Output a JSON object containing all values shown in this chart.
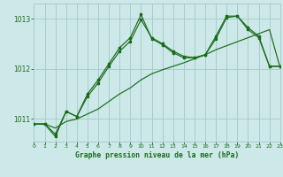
{
  "bg_color": "#cce8e8",
  "grid_color": "#aacccc",
  "line_color": "#1a6b1a",
  "title": "Graphe pression niveau de la mer (hPa)",
  "xlim": [
    0,
    23
  ],
  "ylim": [
    1010.55,
    1013.3
  ],
  "yticks": [
    1011,
    1012,
    1013
  ],
  "xticks": [
    0,
    1,
    2,
    3,
    4,
    5,
    6,
    7,
    8,
    9,
    10,
    11,
    12,
    13,
    14,
    15,
    16,
    17,
    18,
    19,
    20,
    21,
    22,
    23
  ],
  "series_trend_x": [
    0,
    1,
    2,
    3,
    4,
    5,
    6,
    7,
    8,
    9,
    10,
    11,
    12,
    13,
    14,
    15,
    16,
    17,
    18,
    19,
    20,
    21,
    22,
    23
  ],
  "series_trend_y": [
    1010.9,
    1010.9,
    1010.82,
    1010.95,
    1011.0,
    1011.1,
    1011.2,
    1011.35,
    1011.5,
    1011.62,
    1011.78,
    1011.9,
    1011.98,
    1012.05,
    1012.12,
    1012.2,
    1012.28,
    1012.38,
    1012.46,
    1012.54,
    1012.62,
    1012.7,
    1012.78,
    1012.02
  ],
  "series_a_x": [
    0,
    1,
    2,
    3,
    4,
    5,
    6,
    7,
    8,
    9,
    10,
    11,
    12,
    13,
    14,
    15,
    16,
    17,
    18,
    19,
    20,
    21,
    22,
    23
  ],
  "series_a_y": [
    1010.9,
    1010.9,
    1010.7,
    1011.15,
    1011.05,
    1011.5,
    1011.78,
    1012.1,
    1012.42,
    1012.62,
    1013.08,
    1012.6,
    1012.48,
    1012.32,
    1012.22,
    1012.22,
    1012.28,
    1012.65,
    1013.05,
    1013.05,
    1012.82,
    1012.65,
    1012.05,
    1012.05
  ],
  "series_b_x": [
    0,
    1,
    2,
    3,
    4,
    5,
    6,
    7,
    8,
    9,
    10,
    11,
    12,
    13,
    14,
    15,
    16,
    17,
    18,
    19,
    20,
    21,
    22,
    23
  ],
  "series_b_y": [
    1010.9,
    1010.9,
    1010.65,
    1011.15,
    1011.05,
    1011.45,
    1011.72,
    1012.05,
    1012.35,
    1012.55,
    1012.98,
    1012.62,
    1012.5,
    1012.35,
    1012.25,
    1012.22,
    1012.28,
    1012.6,
    1013.02,
    1013.05,
    1012.78,
    1012.62,
    1012.05,
    1012.05
  ]
}
